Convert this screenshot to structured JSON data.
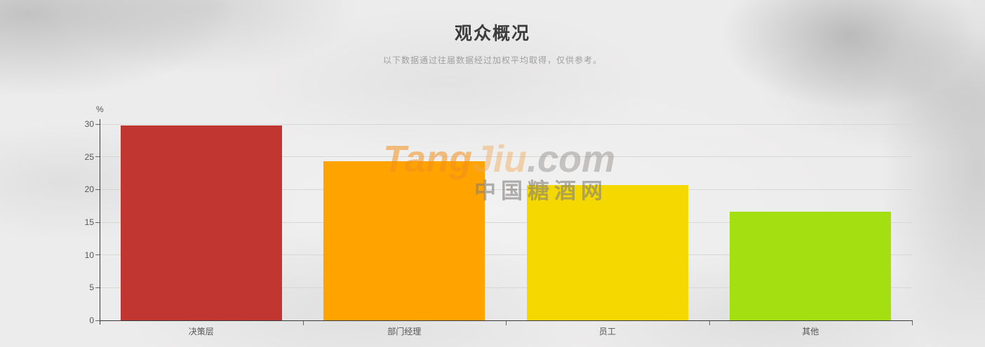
{
  "page": {
    "title": "观众概况",
    "subtitle": "以下数据通过往届数据经过加权平均取得，仅供参考。"
  },
  "watermark": {
    "brand_primary": "Tang",
    "brand_secondary": "Jiu",
    "brand_suffix": ".com",
    "caption": "中国糖酒网",
    "accent_color": "#f0921e"
  },
  "chart_data": {
    "type": "bar",
    "title": "观众概况",
    "categories": [
      "决策层",
      "部门经理",
      "员工",
      "其他"
    ],
    "values": [
      29.8,
      24.3,
      20.7,
      16.6
    ],
    "colors": [
      "#c23632",
      "#ffa300",
      "#f4d800",
      "#a4e011"
    ],
    "xlabel": "",
    "ylabel": "%",
    "ylim": [
      0,
      30
    ],
    "ytick_step": 5,
    "grid": true,
    "legend_position": "none"
  }
}
